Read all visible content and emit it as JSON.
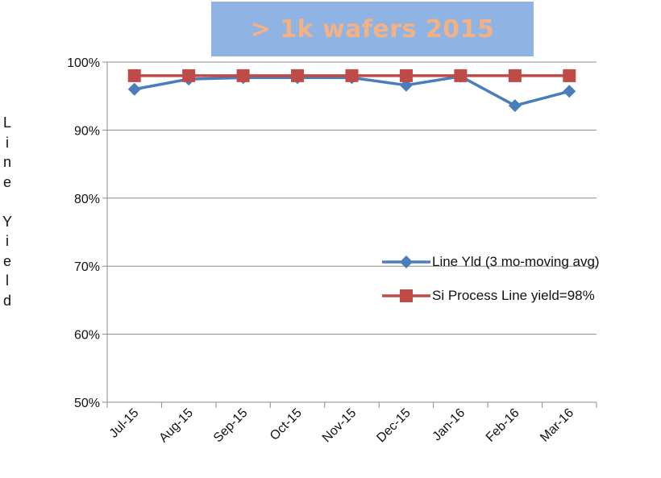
{
  "title": "> 1k wafers 2015",
  "y_axis_label": "Line Yield",
  "colors": {
    "series1": "#4a7ebb",
    "series2": "#be4b48",
    "title_bg": "#8fb4e3",
    "title_text": "#f4b183"
  },
  "chart_data": {
    "type": "line",
    "title": "> 1k wafers 2015",
    "xlabel": "",
    "ylabel": "Line Yield",
    "categories": [
      "Jul-15",
      "Aug-15",
      "Sep-15",
      "Oct-15",
      "Nov-15",
      "Dec-15",
      "Jan-16",
      "Feb-16",
      "Mar-16"
    ],
    "yticks": [
      "50%",
      "60%",
      "70%",
      "80%",
      "90%",
      "100%"
    ],
    "ylim": [
      50,
      100
    ],
    "grid": "horizontal",
    "legend_position": "right",
    "series": [
      {
        "name": "Line Yld (3 mo-moving avg)",
        "marker": "diamond",
        "color": "#4a7ebb",
        "values": [
          96,
          97.5,
          97.7,
          97.7,
          97.7,
          96.6,
          97.9,
          93.6,
          95.7
        ]
      },
      {
        "name": "Si Process Line yield=98%",
        "marker": "square",
        "color": "#be4b48",
        "values": [
          98,
          98,
          98,
          98,
          98,
          98,
          98,
          98,
          98
        ]
      }
    ]
  }
}
